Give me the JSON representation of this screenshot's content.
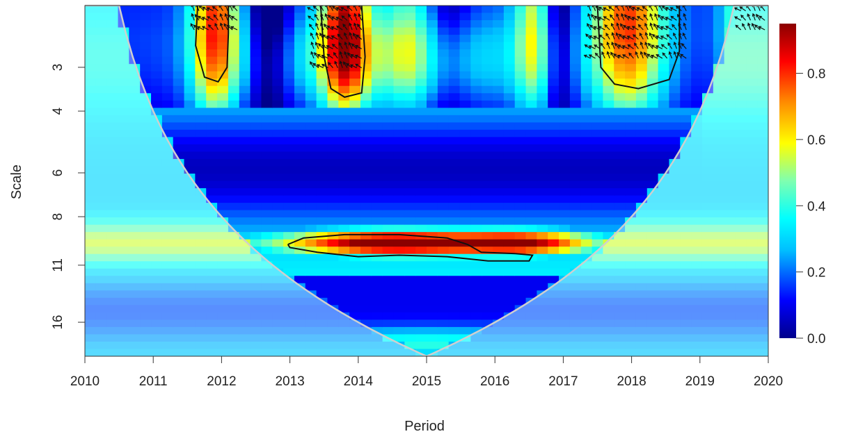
{
  "chart_data": {
    "type": "heatmap",
    "title": "",
    "xlabel": "Period",
    "ylabel": "Scale",
    "x_ticks": [
      "2010",
      "2011",
      "2012",
      "2013",
      "2014",
      "2015",
      "2016",
      "2017",
      "2018",
      "2019",
      "2020"
    ],
    "y_ticks": [
      "3",
      "4",
      "6",
      "8",
      "11",
      "16"
    ],
    "xlim": [
      2010,
      2020
    ],
    "y_scale": "log2",
    "ylim": [
      2.0,
      20.0
    ],
    "colorbar": {
      "ticks": [
        "0.0",
        "0.2",
        "0.4",
        "0.6",
        "0.8"
      ],
      "range": [
        0.0,
        0.95
      ],
      "colors": [
        "#00008b",
        "#0000ff",
        "#00bfff",
        "#00ffff",
        "#7fffd4",
        "#ffff00",
        "#ff8c00",
        "#ff0000",
        "#8b0000"
      ]
    },
    "cone_of_influence": true,
    "significance_contours": [
      {
        "region": "2011.7-2012.1, scale 2-3.3",
        "level": 0.95
      },
      {
        "region": "2013.5-2014.1, scale 2-3.6",
        "level": 0.95
      },
      {
        "region": "2017.5-2018.7, scale 2-3.4",
        "level": 0.95
      },
      {
        "region": "2013.0-2016.5, scale 9-10.6",
        "level": 0.95
      }
    ],
    "notes": "Wavelet coherence spectrum; high coherence at scale ~9-11 between 2013 and 2016.5, and at scale 2-3.5 around 2012, 2014, 2018, 2020."
  }
}
